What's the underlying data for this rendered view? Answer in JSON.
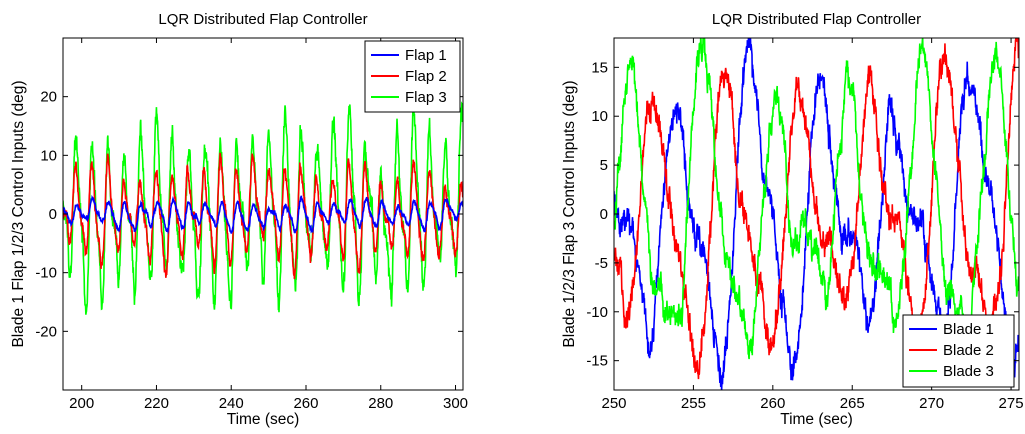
{
  "chart_data": [
    {
      "type": "line",
      "title": "LQR Distributed Flap Controller",
      "xlabel": "Time (sec)",
      "ylabel": "Blade 1 Flap 1/2/3 Control Inputs (deg)",
      "xlim": [
        195,
        302
      ],
      "ylim": [
        -30,
        30
      ],
      "xticks": [
        200,
        220,
        240,
        260,
        280,
        300
      ],
      "yticks": [
        -20,
        -10,
        0,
        10,
        20
      ],
      "grid": false,
      "legend_position": "top-right",
      "series": [
        {
          "name": "Flap 1",
          "color": "#0000ff",
          "period": 4.3,
          "amplitude": 1.8,
          "phase": 0.0,
          "noise": 0.5,
          "z": 3
        },
        {
          "name": "Flap 2",
          "color": "#ff0000",
          "period": 4.3,
          "amplitude": 6.5,
          "phase": 0.35,
          "noise": 1.2,
          "z": 2
        },
        {
          "name": "Flap 3",
          "color": "#00ff00",
          "period": 4.3,
          "amplitude": 11.0,
          "phase": 0.2,
          "noise": 2.3,
          "z": 1
        }
      ]
    },
    {
      "type": "line",
      "title": "LQR Distributed Flap Controller",
      "xlabel": "Time (sec)",
      "ylabel": "Blade 1/2/3 Flap 3 Control Inputs (deg)",
      "xlim": [
        250,
        275.5
      ],
      "ylim": [
        -18,
        18
      ],
      "xticks": [
        250,
        255,
        260,
        265,
        270,
        275
      ],
      "yticks": [
        -15,
        -10,
        -5,
        0,
        5,
        10,
        15
      ],
      "grid": false,
      "legend_position": "bottom-right",
      "series": [
        {
          "name": "Blade 1",
          "color": "#0000ff",
          "period": 4.6,
          "amplitude": 11.0,
          "phase": 0.0,
          "noise": 1.6,
          "z": 1
        },
        {
          "name": "Blade 2",
          "color": "#ff0000",
          "period": 4.6,
          "amplitude": 11.0,
          "phase": 2.094,
          "noise": 1.6,
          "z": 2
        },
        {
          "name": "Blade 3",
          "color": "#00ff00",
          "period": 4.6,
          "amplitude": 11.0,
          "phase": 4.189,
          "noise": 1.6,
          "z": 3
        }
      ]
    }
  ]
}
